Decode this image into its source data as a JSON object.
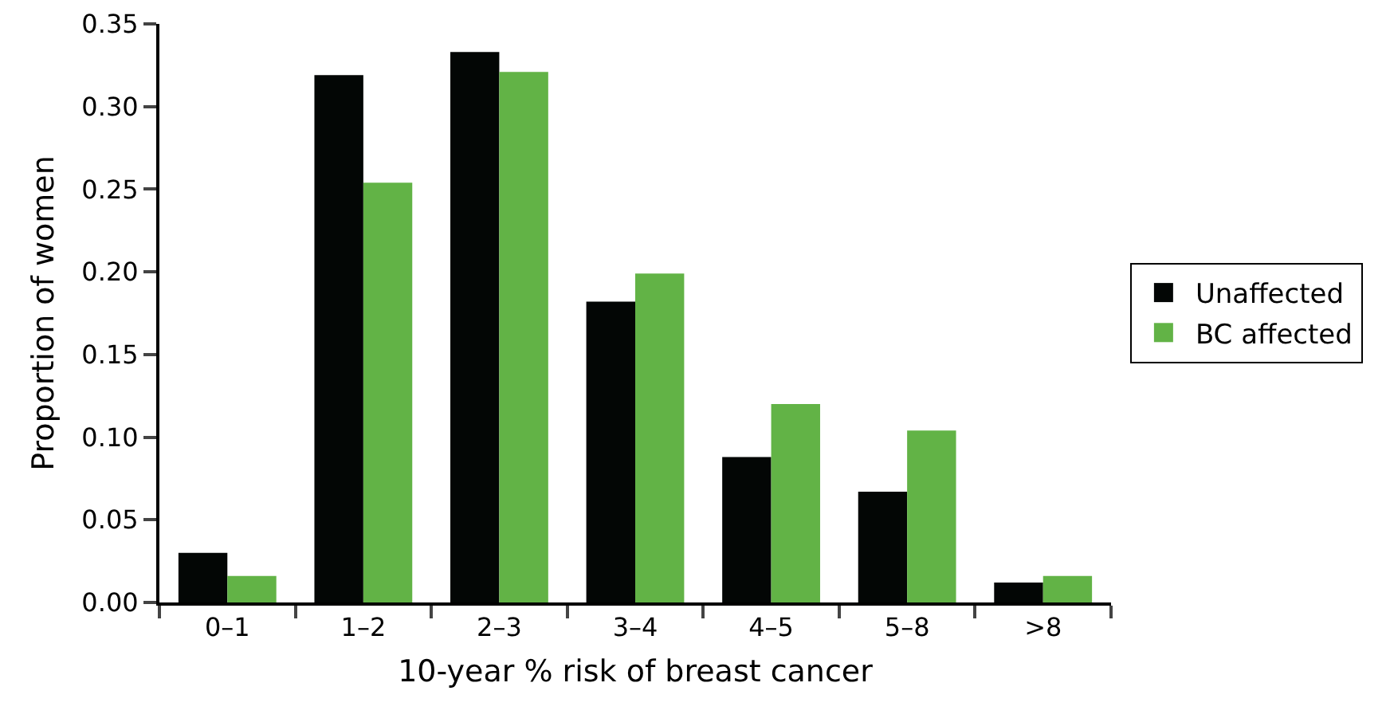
{
  "chart_data": {
    "type": "bar",
    "xlabel": "10-year % risk of breast cancer",
    "ylabel": "Proportion of women",
    "categories": [
      "0–1",
      "1–2",
      "2–3",
      "3–4",
      "4–5",
      "5–8",
      ">8"
    ],
    "series": [
      {
        "name": "Unaffected",
        "color": "#030605",
        "values": [
          0.03,
          0.319,
          0.333,
          0.182,
          0.088,
          0.067,
          0.012
        ]
      },
      {
        "name": "BC affected",
        "color": "#62b346",
        "values": [
          0.016,
          0.254,
          0.321,
          0.199,
          0.12,
          0.104,
          0.016
        ]
      }
    ],
    "ylim": [
      0,
      0.35
    ],
    "yticks": [
      {
        "value": 0,
        "label": "0.00"
      },
      {
        "value": 0.05,
        "label": "0.05"
      },
      {
        "value": 0.1,
        "label": "0.10"
      },
      {
        "value": 0.15,
        "label": "0.15"
      },
      {
        "value": 0.2,
        "label": "0.20"
      },
      {
        "value": 0.25,
        "label": "0.25"
      },
      {
        "value": 0.3,
        "label": "0.30"
      },
      {
        "value": 0.35,
        "label": "0.35"
      }
    ],
    "grid": false,
    "legend": "right"
  }
}
